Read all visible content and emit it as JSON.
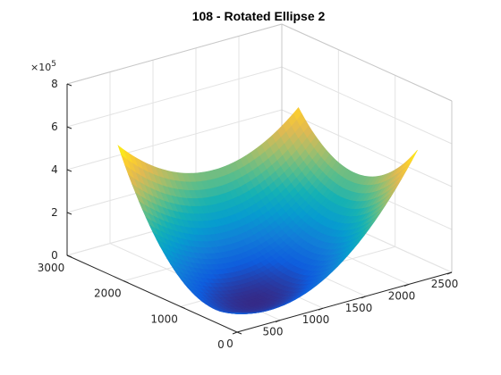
{
  "chart_data": {
    "type": "surface",
    "title": "108 - Rotated Ellipse 2",
    "xlabel": "",
    "ylabel": "",
    "zlabel": "",
    "xlim": [
      0,
      2500
    ],
    "ylim": [
      0,
      3000
    ],
    "zlim": [
      0,
      800000
    ],
    "x_ticks": [
      "0",
      "500",
      "1000",
      "1500",
      "2000",
      "2500"
    ],
    "y_ticks": [
      "0",
      "1000",
      "2000",
      "3000"
    ],
    "z_ticks": [
      "0",
      "2",
      "4",
      "6",
      "8"
    ],
    "z_exponent_base": "×10",
    "z_exponent_power": "5",
    "grid": true,
    "colormap": "parula",
    "surface_domain": {
      "x": [
        0,
        2100
      ],
      "y": [
        0,
        2100
      ]
    },
    "corner_values": [
      {
        "x": 0,
        "y": 0,
        "z": 90000
      },
      {
        "x": 2100,
        "y": 0,
        "z": 615000
      },
      {
        "x": 2100,
        "y": 2100,
        "z": 210000
      },
      {
        "x": 0,
        "y": 2100,
        "z": 620000
      }
    ],
    "minimum": {
      "x": 600,
      "y": 600,
      "z": 0
    }
  }
}
